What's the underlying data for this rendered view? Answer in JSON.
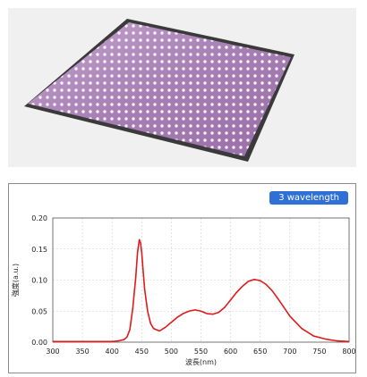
{
  "photo": {
    "icon": "led-panel-photo",
    "panel_color": "#b98fc4"
  },
  "badge": {
    "label": "3 wavelength",
    "color": "#2f6fd6"
  },
  "chart_data": {
    "type": "line",
    "title": "",
    "xlabel": "波長(nm)",
    "ylabel": "強度(a.u.)",
    "xlim": [
      300,
      800
    ],
    "ylim": [
      0,
      0.2
    ],
    "x_ticks": [
      300,
      350,
      400,
      450,
      500,
      550,
      600,
      650,
      700,
      750,
      800
    ],
    "y_ticks": [
      "0.00",
      "0.05",
      "0.10",
      "0.15",
      "0.20"
    ],
    "grid": true,
    "line_color": "#e01a1a",
    "series": [
      {
        "x": [
          300,
          350,
          400,
          410,
          420,
          425,
          430,
          435,
          440,
          443,
          446,
          448,
          450,
          452,
          455,
          460,
          465,
          470,
          480,
          490,
          500,
          510,
          520,
          530,
          540,
          550,
          560,
          570,
          580,
          590,
          600,
          610,
          620,
          630,
          640,
          645,
          650,
          660,
          670,
          680,
          690,
          700,
          720,
          740,
          760,
          780,
          800
        ],
        "values": [
          0.001,
          0.001,
          0.001,
          0.002,
          0.004,
          0.008,
          0.02,
          0.055,
          0.105,
          0.145,
          0.165,
          0.16,
          0.145,
          0.12,
          0.085,
          0.05,
          0.03,
          0.022,
          0.018,
          0.024,
          0.032,
          0.04,
          0.046,
          0.05,
          0.052,
          0.05,
          0.046,
          0.045,
          0.048,
          0.056,
          0.068,
          0.08,
          0.09,
          0.098,
          0.101,
          0.1,
          0.099,
          0.093,
          0.083,
          0.07,
          0.056,
          0.042,
          0.022,
          0.01,
          0.005,
          0.002,
          0.001
        ]
      }
    ]
  }
}
